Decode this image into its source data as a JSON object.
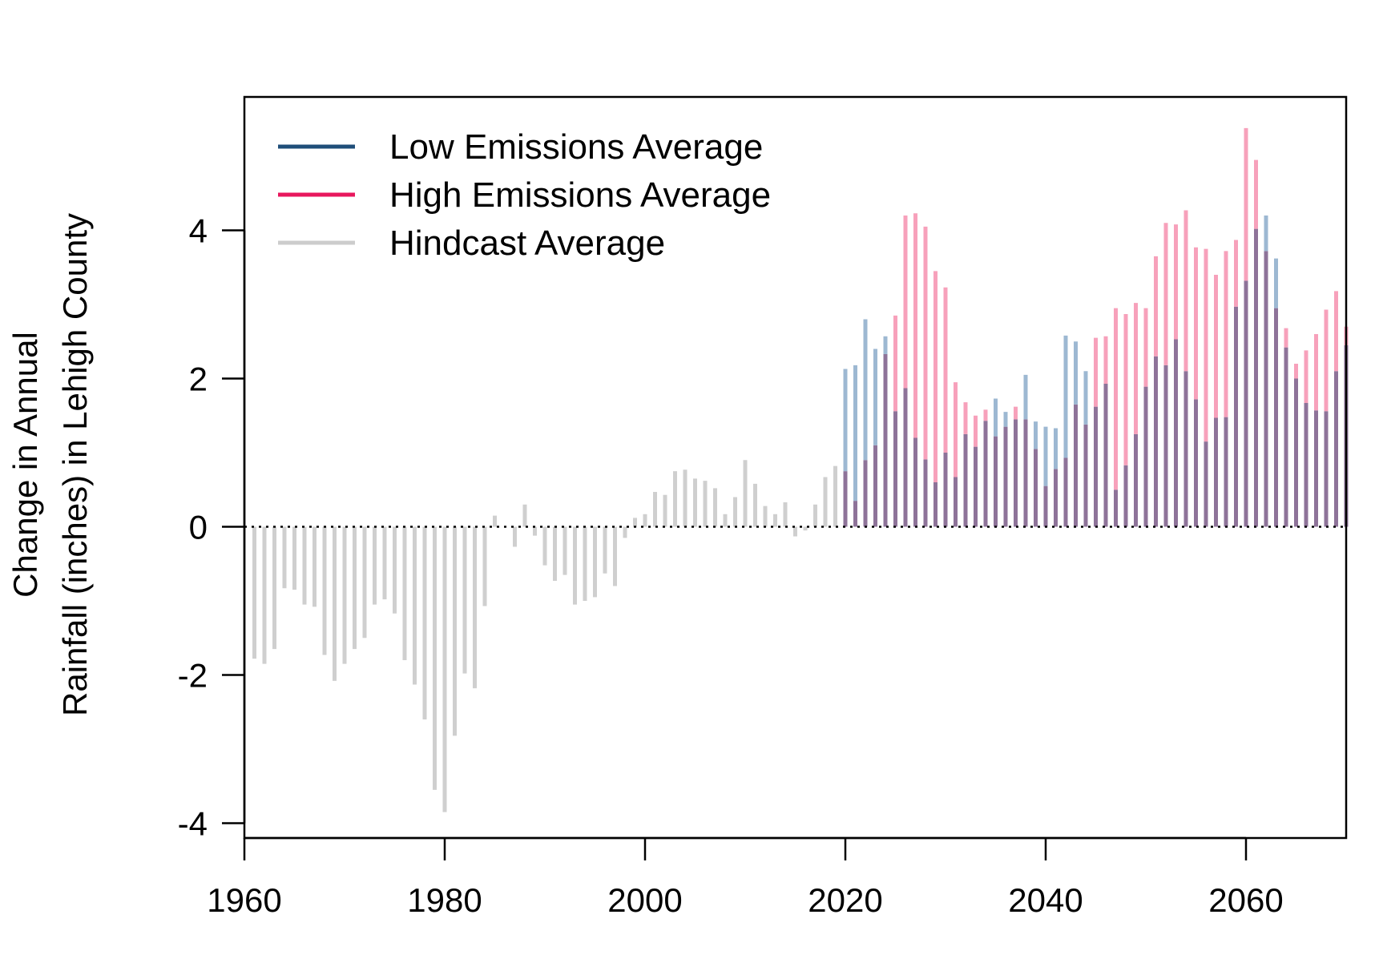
{
  "chart_data": {
    "type": "bar",
    "ylabel": [
      "Change in Annual",
      "Rainfall (inches) in Lehigh County"
    ],
    "xlim": [
      1960,
      2070
    ],
    "ylim": [
      -4.2,
      5.8
    ],
    "x_ticks": [
      "1960",
      "1980",
      "2000",
      "2020",
      "2040",
      "2060"
    ],
    "y_ticks": [
      "-4",
      "-2",
      "0",
      "2",
      "4"
    ],
    "reference_line": 0,
    "grid": false,
    "legend": {
      "position": "top-left",
      "entries": [
        {
          "label": "Low Emissions Average",
          "color": "#1f4e79"
        },
        {
          "label": "High Emissions Average",
          "color": "#e8175d"
        },
        {
          "label": "Hindcast Average",
          "color": "#cccccc"
        }
      ]
    },
    "colors": {
      "hindcast": "#cfcfcf",
      "low": "#9db8d2",
      "high": "#f7a1bb",
      "overlap": "#8e7399"
    },
    "series": [
      {
        "name": "Hindcast Average",
        "x": [
          1961,
          1962,
          1963,
          1964,
          1965,
          1966,
          1967,
          1968,
          1969,
          1970,
          1971,
          1972,
          1973,
          1974,
          1975,
          1976,
          1977,
          1978,
          1979,
          1980,
          1981,
          1982,
          1983,
          1984,
          1985,
          1986,
          1987,
          1988,
          1989,
          1990,
          1991,
          1992,
          1993,
          1994,
          1995,
          1996,
          1997,
          1998,
          1999,
          2000,
          2001,
          2002,
          2003,
          2004,
          2005,
          2006,
          2007,
          2008,
          2009,
          2010,
          2011,
          2012,
          2013,
          2014,
          2015,
          2016,
          2017,
          2018,
          2019
        ],
        "values": [
          -1.78,
          -1.85,
          -1.65,
          -0.83,
          -0.85,
          -1.05,
          -1.08,
          -1.73,
          -2.08,
          -1.85,
          -1.65,
          -1.5,
          -1.05,
          -0.98,
          -1.17,
          -1.8,
          -2.13,
          -2.6,
          -3.55,
          -3.85,
          -2.82,
          -1.98,
          -2.18,
          -1.07,
          0.15,
          0,
          -0.27,
          0.3,
          -0.12,
          -0.52,
          -0.73,
          -0.65,
          -1.05,
          -1.0,
          -0.95,
          -0.63,
          -0.8,
          -0.15,
          0.12,
          0.17,
          0.47,
          0.43,
          0.75,
          0.77,
          0.65,
          0.62,
          0.52,
          0.17,
          0.4,
          0.9,
          0.58,
          0.28,
          0.17,
          0.33,
          -0.13,
          -0.05,
          0.3,
          0.67,
          0.82
        ]
      },
      {
        "name": "Low Emissions Average",
        "x": [
          2020,
          2021,
          2022,
          2023,
          2024,
          2025,
          2026,
          2027,
          2028,
          2029,
          2030,
          2031,
          2032,
          2033,
          2034,
          2035,
          2036,
          2037,
          2038,
          2039,
          2040,
          2041,
          2042,
          2043,
          2044,
          2045,
          2046,
          2047,
          2048,
          2049,
          2050,
          2051,
          2052,
          2053,
          2054,
          2055,
          2056,
          2057,
          2058,
          2059,
          2060,
          2061,
          2062,
          2063,
          2064,
          2065,
          2066,
          2067,
          2068,
          2069,
          2070
        ],
        "values": [
          2.13,
          2.18,
          2.8,
          2.4,
          2.57,
          1.56,
          1.87,
          1.2,
          0.91,
          0.6,
          1.0,
          0.67,
          1.25,
          1.08,
          1.43,
          1.73,
          1.55,
          1.45,
          2.05,
          1.42,
          1.35,
          1.33,
          2.58,
          2.5,
          2.1,
          1.62,
          1.93,
          0.5,
          0.83,
          1.25,
          1.89,
          2.3,
          2.18,
          2.53,
          2.1,
          1.72,
          1.15,
          1.47,
          1.48,
          2.97,
          3.32,
          4.02,
          4.2,
          3.62,
          2.42,
          2.0,
          1.67,
          1.57,
          1.56,
          2.1,
          2.45
        ]
      },
      {
        "name": "High Emissions Average",
        "x": [
          2020,
          2021,
          2022,
          2023,
          2024,
          2025,
          2026,
          2027,
          2028,
          2029,
          2030,
          2031,
          2032,
          2033,
          2034,
          2035,
          2036,
          2037,
          2038,
          2039,
          2040,
          2041,
          2042,
          2043,
          2044,
          2045,
          2046,
          2047,
          2048,
          2049,
          2050,
          2051,
          2052,
          2053,
          2054,
          2055,
          2056,
          2057,
          2058,
          2059,
          2060,
          2061,
          2062,
          2063,
          2064,
          2065,
          2066,
          2067,
          2068,
          2069,
          2070
        ],
        "values": [
          0.75,
          0.35,
          0.9,
          1.1,
          2.33,
          2.85,
          4.2,
          4.23,
          4.05,
          3.45,
          3.23,
          1.95,
          1.68,
          1.5,
          1.58,
          1.22,
          1.35,
          1.62,
          1.45,
          1.05,
          0.55,
          0.78,
          0.93,
          1.65,
          1.38,
          2.55,
          2.57,
          2.95,
          2.87,
          3.02,
          2.95,
          3.65,
          4.1,
          4.08,
          4.27,
          3.77,
          3.75,
          3.4,
          3.72,
          3.87,
          5.38,
          4.95,
          3.72,
          2.95,
          2.68,
          2.2,
          2.38,
          2.6,
          2.93,
          3.18,
          2.7
        ]
      }
    ]
  }
}
